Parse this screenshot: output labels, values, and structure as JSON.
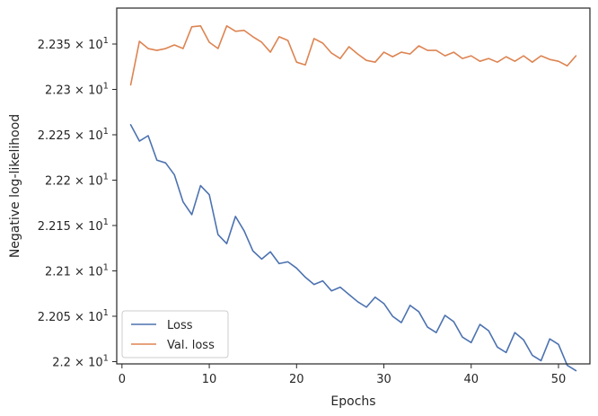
{
  "chart_data": {
    "type": "line",
    "title": "",
    "xlabel": "Epochs",
    "ylabel": "Negative log-likelihood",
    "xlim": [
      -0.6,
      53.6
    ],
    "ylim": [
      21.9975,
      22.3896
    ],
    "x_ticks": [
      0,
      10,
      20,
      30,
      40,
      50
    ],
    "x_tick_labels": [
      "0",
      "10",
      "20",
      "30",
      "40",
      "50"
    ],
    "y_ticks": [
      22.0,
      22.05,
      22.1,
      22.15,
      22.2,
      22.25,
      22.3,
      22.35
    ],
    "y_tick_mantissas": [
      "2.2",
      "2.205",
      "2.21",
      "2.215",
      "2.22",
      "2.225",
      "2.23",
      "2.235"
    ],
    "y_tick_suffix": "× 10",
    "y_tick_exponent": "1",
    "grid": false,
    "legend_position": "lower-left",
    "x": [
      1,
      2,
      3,
      4,
      5,
      6,
      7,
      8,
      9,
      10,
      11,
      12,
      13,
      14,
      15,
      16,
      17,
      18,
      19,
      20,
      21,
      22,
      23,
      24,
      25,
      26,
      27,
      28,
      29,
      30,
      31,
      32,
      33,
      34,
      35,
      36,
      37,
      38,
      39,
      40,
      41,
      42,
      43,
      44,
      45,
      46,
      47,
      48,
      49,
      50,
      51,
      52
    ],
    "series": [
      {
        "name": "Loss",
        "color": "#4c72b0",
        "values": [
          22.261,
          22.243,
          22.249,
          22.222,
          22.219,
          22.206,
          22.176,
          22.162,
          22.194,
          22.184,
          22.14,
          22.13,
          22.16,
          22.144,
          22.122,
          22.113,
          22.121,
          22.108,
          22.11,
          22.103,
          22.093,
          22.085,
          22.089,
          22.078,
          22.082,
          22.074,
          22.066,
          22.06,
          22.071,
          22.064,
          22.05,
          22.043,
          22.062,
          22.055,
          22.038,
          22.032,
          22.051,
          22.044,
          22.027,
          22.021,
          22.041,
          22.034,
          22.016,
          22.01,
          22.032,
          22.024,
          22.007,
          22.001,
          22.025,
          22.019,
          21.996,
          21.99
        ]
      },
      {
        "name": "Val. loss",
        "color": "#dd8452",
        "values": [
          22.305,
          22.353,
          22.345,
          22.343,
          22.345,
          22.349,
          22.345,
          22.369,
          22.37,
          22.352,
          22.345,
          22.37,
          22.364,
          22.365,
          22.358,
          22.352,
          22.341,
          22.358,
          22.354,
          22.33,
          22.327,
          22.356,
          22.351,
          22.34,
          22.334,
          22.347,
          22.339,
          22.332,
          22.33,
          22.341,
          22.336,
          22.341,
          22.339,
          22.348,
          22.343,
          22.343,
          22.337,
          22.341,
          22.334,
          22.337,
          22.331,
          22.334,
          22.33,
          22.336,
          22.331,
          22.337,
          22.33,
          22.337,
          22.333,
          22.331,
          22.326,
          22.337
        ]
      }
    ]
  }
}
